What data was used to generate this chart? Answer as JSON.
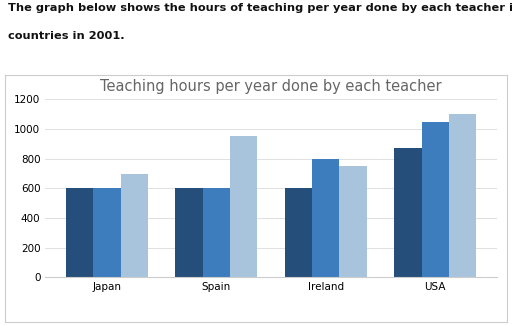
{
  "title": "Teaching hours per year done by each teacher",
  "header_line1": "The graph below shows the hours of teaching per year done by each teacher in four different",
  "header_line2": "countries in 2001.",
  "categories": [
    "Japan",
    "Spain",
    "Ireland",
    "USA"
  ],
  "series": {
    "Primary": [
      600,
      600,
      600,
      875
    ],
    "Lower secondary": [
      600,
      600,
      800,
      1050
    ],
    "Upper secondary": [
      700,
      950,
      750,
      1100
    ]
  },
  "colors": {
    "Primary": "#254e7a",
    "Lower secondary": "#3d7cbd",
    "Upper secondary": "#a8c4dd"
  },
  "ylim": [
    0,
    1200
  ],
  "yticks": [
    0,
    200,
    400,
    600,
    800,
    1000,
    1200
  ],
  "bar_width": 0.25,
  "figsize": [
    5.12,
    3.25
  ],
  "dpi": 100,
  "chart_bg": "#ffffff",
  "outer_bg": "#ffffff",
  "grid_color": "#e0e0e0",
  "header_fontsize": 8.2,
  "title_fontsize": 10.5,
  "tick_fontsize": 7.5,
  "legend_fontsize": 7.5,
  "chart_border_color": "#cccccc"
}
